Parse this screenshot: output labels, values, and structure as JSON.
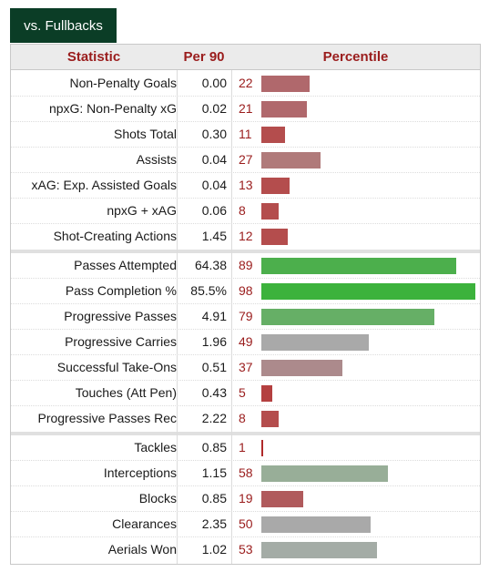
{
  "tab": {
    "label": "vs. Fullbacks"
  },
  "columns": {
    "statistic": "Statistic",
    "per90": "Per 90",
    "percentile": "Percentile"
  },
  "bar_max_percentile": 100,
  "groups": [
    {
      "rows": [
        {
          "stat": "Non-Penalty Goals",
          "per90": "0.00",
          "pct": "22",
          "pct_value": 22,
          "color": "#b0686c"
        },
        {
          "stat": "npxG: Non-Penalty xG",
          "per90": "0.02",
          "pct": "21",
          "pct_value": 21,
          "color": "#b0686c"
        },
        {
          "stat": "Shots Total",
          "per90": "0.30",
          "pct": "11",
          "pct_value": 11,
          "color": "#b44d4d"
        },
        {
          "stat": "Assists",
          "per90": "0.04",
          "pct": "27",
          "pct_value": 27,
          "color": "#b07a7a"
        },
        {
          "stat": "xAG: Exp. Assisted Goals",
          "per90": "0.04",
          "pct": "13",
          "pct_value": 13,
          "color": "#b44d4d"
        },
        {
          "stat": "npxG + xAG",
          "per90": "0.06",
          "pct": "8",
          "pct_value": 8,
          "color": "#b44d4d"
        },
        {
          "stat": "Shot-Creating Actions",
          "per90": "1.45",
          "pct": "12",
          "pct_value": 12,
          "color": "#b44d4d"
        }
      ]
    },
    {
      "rows": [
        {
          "stat": "Passes Attempted",
          "per90": "64.38",
          "pct": "89",
          "pct_value": 89,
          "color": "#4caf4c"
        },
        {
          "stat": "Pass Completion %",
          "per90": "85.5%",
          "pct": "98",
          "pct_value": 98,
          "color": "#3cb23c"
        },
        {
          "stat": "Progressive Passes",
          "per90": "4.91",
          "pct": "79",
          "pct_value": 79,
          "color": "#66af66"
        },
        {
          "stat": "Progressive Carries",
          "per90": "1.96",
          "pct": "49",
          "pct_value": 49,
          "color": "#a9a9a9"
        },
        {
          "stat": "Successful Take-Ons",
          "per90": "0.51",
          "pct": "37",
          "pct_value": 37,
          "color": "#ac8a8c"
        },
        {
          "stat": "Touches (Att Pen)",
          "per90": "0.43",
          "pct": "5",
          "pct_value": 5,
          "color": "#b44040"
        },
        {
          "stat": "Progressive Passes Rec",
          "per90": "2.22",
          "pct": "8",
          "pct_value": 8,
          "color": "#b44d4d"
        }
      ]
    },
    {
      "rows": [
        {
          "stat": "Tackles",
          "per90": "0.85",
          "pct": "1",
          "pct_value": 1,
          "color": "#b02a2a"
        },
        {
          "stat": "Interceptions",
          "per90": "1.15",
          "pct": "58",
          "pct_value": 58,
          "color": "#98ae98"
        },
        {
          "stat": "Blocks",
          "per90": "0.85",
          "pct": "19",
          "pct_value": 19,
          "color": "#b05a5c"
        },
        {
          "stat": "Clearances",
          "per90": "2.35",
          "pct": "50",
          "pct_value": 50,
          "color": "#a9a9a9"
        },
        {
          "stat": "Aerials Won",
          "per90": "1.02",
          "pct": "53",
          "pct_value": 53,
          "color": "#a4aca6"
        }
      ]
    }
  ]
}
